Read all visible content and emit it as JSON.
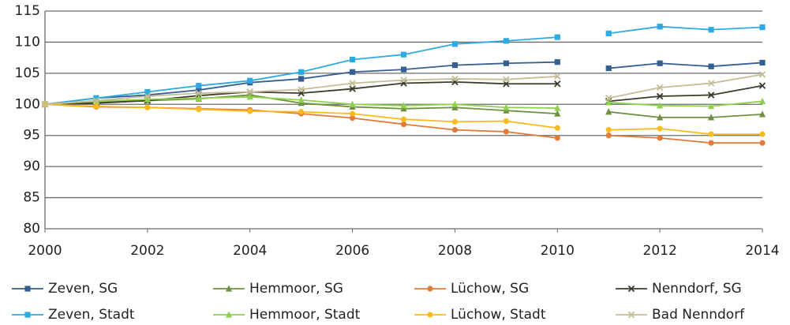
{
  "chart_data": {
    "type": "line",
    "x": [
      2000,
      2001,
      2002,
      2003,
      2004,
      2005,
      2006,
      2007,
      2008,
      2009,
      2010,
      null,
      2011,
      2012,
      2013,
      2014
    ],
    "xlim": [
      2000,
      2014
    ],
    "xticks": [
      2000,
      2002,
      2004,
      2006,
      2008,
      2010,
      2012,
      2014
    ],
    "ylim": [
      80,
      115
    ],
    "yticks": [
      80,
      85,
      90,
      95,
      100,
      105,
      110,
      115
    ],
    "grid": true,
    "series": [
      {
        "name": "Zeven, SG",
        "color": "#365f91",
        "marker": "square",
        "values": [
          100,
          101.0,
          101.5,
          102.3,
          103.5,
          104.1,
          105.2,
          105.6,
          106.3,
          106.6,
          106.8,
          null,
          105.8,
          106.6,
          106.1,
          106.7
        ]
      },
      {
        "name": "Hemmoor, SG",
        "color": "#6e9040",
        "marker": "triangle",
        "values": [
          100,
          100.3,
          100.6,
          100.9,
          101.5,
          100.2,
          99.6,
          99.3,
          99.5,
          99.0,
          98.5,
          null,
          98.8,
          97.9,
          97.9,
          98.4
        ]
      },
      {
        "name": "Lüchow, SG",
        "color": "#e07b39",
        "marker": "circle",
        "values": [
          100,
          99.6,
          99.5,
          99.3,
          99.1,
          98.5,
          97.8,
          96.8,
          95.9,
          95.6,
          94.6,
          null,
          95.0,
          94.6,
          93.8,
          93.8
        ]
      },
      {
        "name": "Nenndorf, SG",
        "color": "#3b3b2e",
        "marker": "x",
        "values": [
          100,
          100.2,
          100.6,
          101.4,
          102.0,
          101.8,
          102.5,
          103.4,
          103.6,
          103.3,
          103.3,
          null,
          100.5,
          101.3,
          101.5,
          103.0
        ]
      },
      {
        "name": "Zeven, Stadt",
        "color": "#2eaae0",
        "marker": "square",
        "values": [
          100,
          101.0,
          102.0,
          103.0,
          103.8,
          105.2,
          107.2,
          108.0,
          109.7,
          110.2,
          110.8,
          null,
          111.4,
          112.5,
          112.0,
          112.4
        ]
      },
      {
        "name": "Hemmoor, Stadt",
        "color": "#8fd14f",
        "marker": "triangle",
        "values": [
          100,
          100.5,
          100.8,
          101.0,
          101.2,
          100.7,
          100.0,
          99.8,
          100.0,
          99.5,
          99.4,
          null,
          100.3,
          99.8,
          99.7,
          100.5
        ]
      },
      {
        "name": "Lüchow, Stadt",
        "color": "#fbbb1e",
        "marker": "circle",
        "values": [
          100,
          99.7,
          99.5,
          99.2,
          98.9,
          98.8,
          98.5,
          97.6,
          97.2,
          97.3,
          96.2,
          null,
          95.9,
          96.1,
          95.2,
          95.2
        ]
      },
      {
        "name": "Bad Nenndorf",
        "color": "#c4bd97",
        "marker": "x",
        "values": [
          100,
          100.6,
          101.3,
          101.8,
          102.0,
          102.4,
          103.4,
          103.9,
          104.1,
          104.0,
          104.5,
          null,
          101.0,
          102.7,
          103.4,
          104.8
        ]
      }
    ]
  }
}
